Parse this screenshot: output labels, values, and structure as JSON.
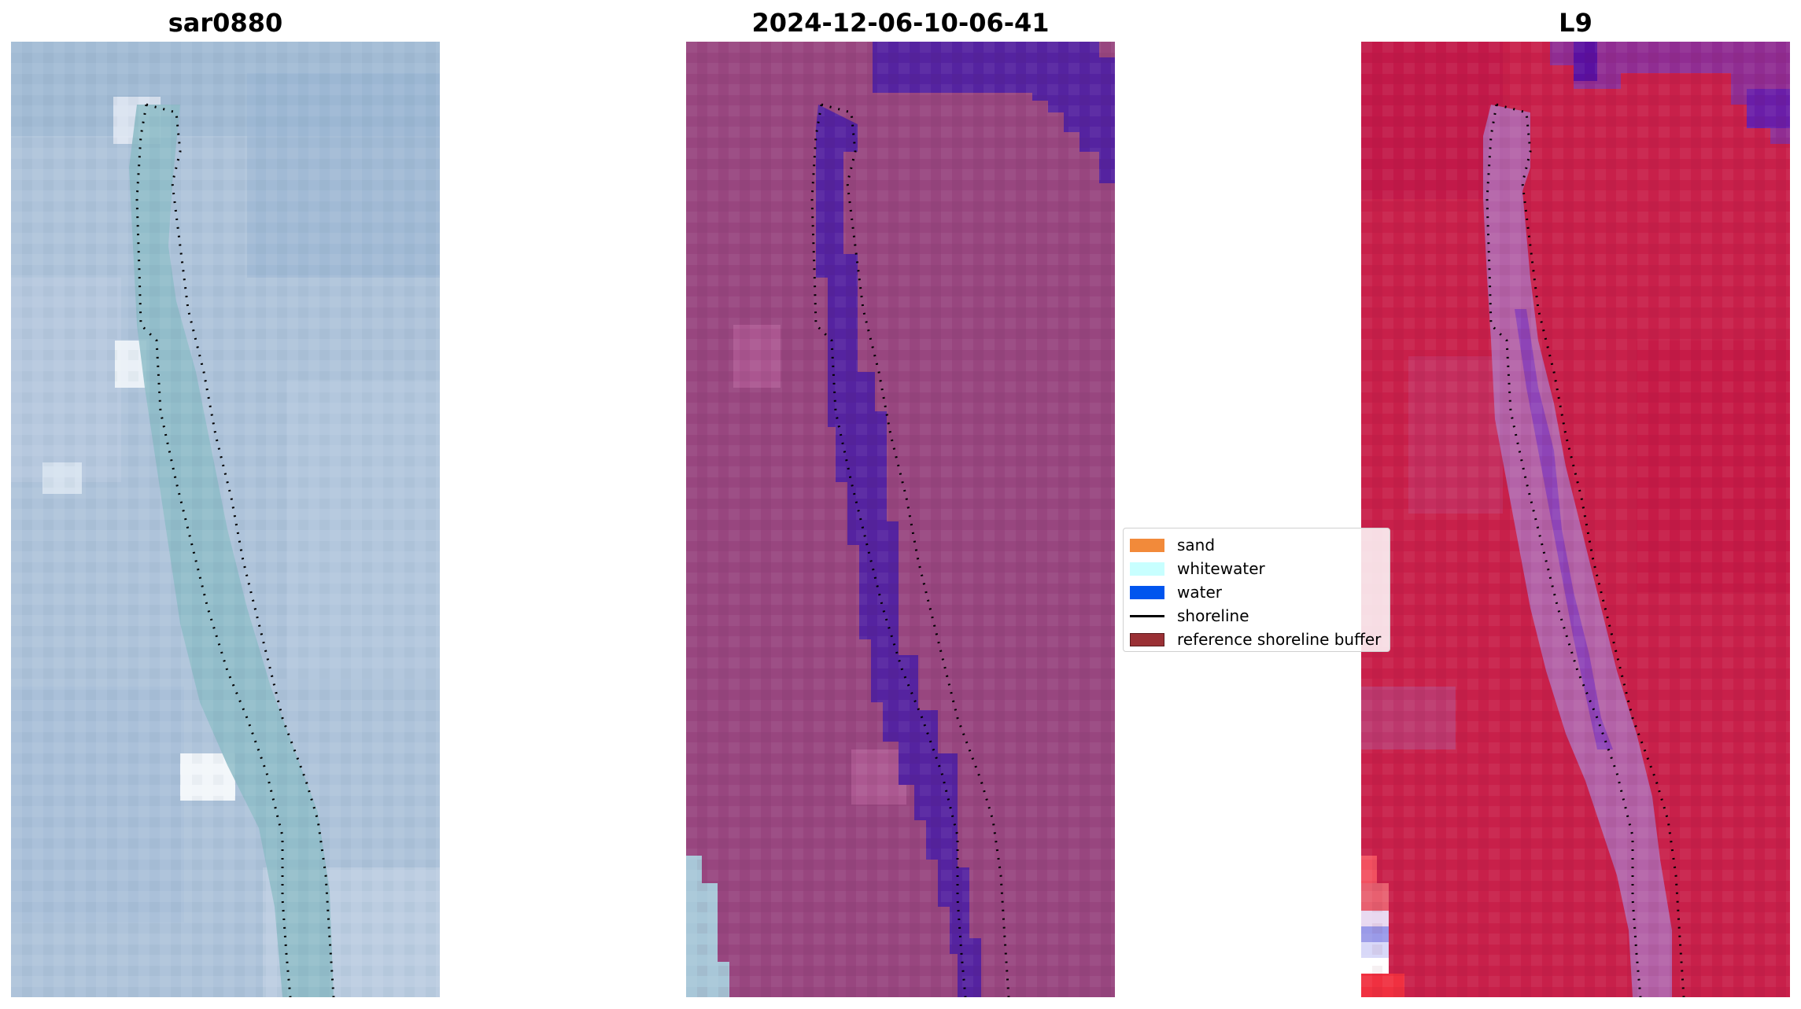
{
  "panels": [
    {
      "title": "sar0880"
    },
    {
      "title": "2024-12-06-10-06-41"
    },
    {
      "title": "L9"
    }
  ],
  "legend": {
    "items": [
      {
        "label": "sand",
        "color": "#f28a3a",
        "kind": "patch"
      },
      {
        "label": "whitewater",
        "color": "#c8ffff",
        "kind": "patch"
      },
      {
        "label": "water",
        "color": "#0055ee",
        "kind": "patch"
      },
      {
        "label": "shoreline",
        "color": "#000000",
        "kind": "line"
      },
      {
        "label": "reference shoreline buffer",
        "color": "#9a3035",
        "kind": "patch"
      }
    ]
  },
  "colors": {
    "rgb_base": "#a9bfd6",
    "rgb_river": "#8fbcc8",
    "class_land": "#98467f",
    "class_water": "#5523a0",
    "class_sand_edge": "#a8c7d8",
    "index_land": "#c8204a",
    "index_river": "#b070b8",
    "shoreline": "#000000"
  }
}
